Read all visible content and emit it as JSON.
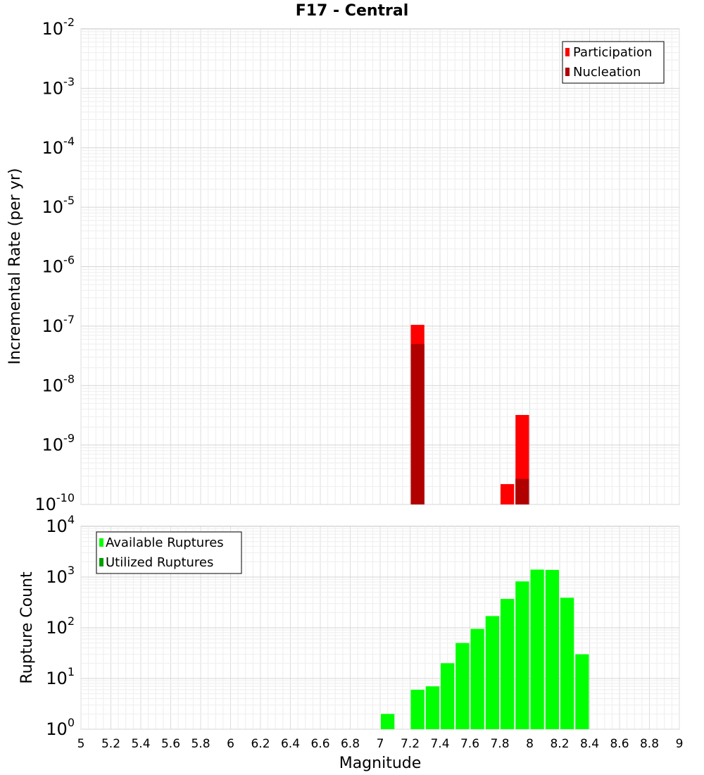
{
  "chart_data": [
    {
      "type": "bar",
      "title": "F17 - Central",
      "xlabel": "Magnitude",
      "ylabel": "Incremental Rate (per yr)",
      "yscale": "log",
      "ylim_exp": [
        -10,
        -2
      ],
      "xlim": [
        5,
        9
      ],
      "x_ticks": [
        "5",
        "5.2",
        "5.4",
        "5.6",
        "5.8",
        "6",
        "6.2",
        "6.4",
        "6.6",
        "6.8",
        "7",
        "7.2",
        "7.4",
        "7.6",
        "7.8",
        "8",
        "8.2",
        "8.4",
        "8.6",
        "8.8",
        "9"
      ],
      "legend": "top-right",
      "grid": true,
      "series": [
        {
          "name": "Participation",
          "color": "#ff0000",
          "points": [
            {
              "x": 7.25,
              "y": 1.05e-07
            },
            {
              "x": 7.85,
              "y": 2.2e-10
            },
            {
              "x": 7.95,
              "y": 3.2e-09
            }
          ]
        },
        {
          "name": "Nucleation",
          "color": "#b00000",
          "points": [
            {
              "x": 7.25,
              "y": 5e-08
            },
            {
              "x": 7.95,
              "y": 2.7e-10
            }
          ]
        }
      ]
    },
    {
      "type": "bar",
      "title": "",
      "xlabel": "Magnitude",
      "ylabel": "Rupture Count",
      "yscale": "log",
      "ylim_exp": [
        0,
        4
      ],
      "xlim": [
        5,
        9
      ],
      "legend": "top-left",
      "grid": true,
      "series": [
        {
          "name": "Available Ruptures",
          "color": "#00ff00",
          "points": [
            {
              "x": 6.95,
              "y": 1
            },
            {
              "x": 7.05,
              "y": 2
            },
            {
              "x": 7.25,
              "y": 6
            },
            {
              "x": 7.35,
              "y": 7
            },
            {
              "x": 7.45,
              "y": 20
            },
            {
              "x": 7.55,
              "y": 50
            },
            {
              "x": 7.65,
              "y": 95
            },
            {
              "x": 7.75,
              "y": 170
            },
            {
              "x": 7.85,
              "y": 370
            },
            {
              "x": 7.95,
              "y": 820
            },
            {
              "x": 8.05,
              "y": 1400
            },
            {
              "x": 8.15,
              "y": 1380
            },
            {
              "x": 8.25,
              "y": 390
            },
            {
              "x": 8.35,
              "y": 30
            }
          ]
        },
        {
          "name": "Utilized Ruptures",
          "color": "#00a000",
          "points": [
            {
              "x": 7.25,
              "y": 1
            },
            {
              "x": 7.85,
              "y": 1
            },
            {
              "x": 7.95,
              "y": 1
            }
          ]
        }
      ]
    }
  ]
}
